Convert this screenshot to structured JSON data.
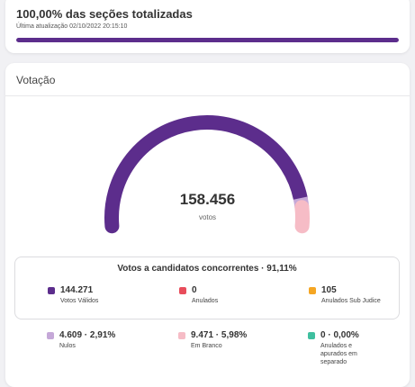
{
  "status": {
    "totalized": "100,00% das seções totalizadas",
    "updated": "Última atualização 02/10/2022 20:15:10",
    "progress_fraction": 1.0,
    "progress_color": "#5c2d8c"
  },
  "votacao": {
    "title": "Votação",
    "total": "158.456",
    "total_label": "votos",
    "gauge": {
      "segments": [
        {
          "key": "validos",
          "fraction": 0.9111,
          "color": "#5c2d8c"
        },
        {
          "key": "nulos",
          "fraction": 0.0291,
          "color": "#c5a8d8"
        },
        {
          "key": "brancos",
          "fraction": 0.0598,
          "color": "#f6bcc6"
        }
      ]
    },
    "candidates_box": {
      "title": "Votos a candidatos concorrentes · 91,11%"
    },
    "stats": [
      {
        "value": "144.271",
        "label": "Votos Válidos",
        "color": "#5c2d8c"
      },
      {
        "value": "0",
        "label": "Anulados",
        "color": "#e84d5b"
      },
      {
        "value": "105",
        "label": "Anulados Sub Judice",
        "color": "#f5a623"
      },
      {
        "value": "4.609 · 2,91%",
        "label": "Nulos",
        "color": "#c5a8d8"
      },
      {
        "value": "9.471 · 5,98%",
        "label": "Em Branco",
        "color": "#f6bcc6"
      },
      {
        "value": "0 · 0,00%",
        "label": "Anulados e apurados em separado",
        "color": "#3fbf9f"
      }
    ]
  }
}
